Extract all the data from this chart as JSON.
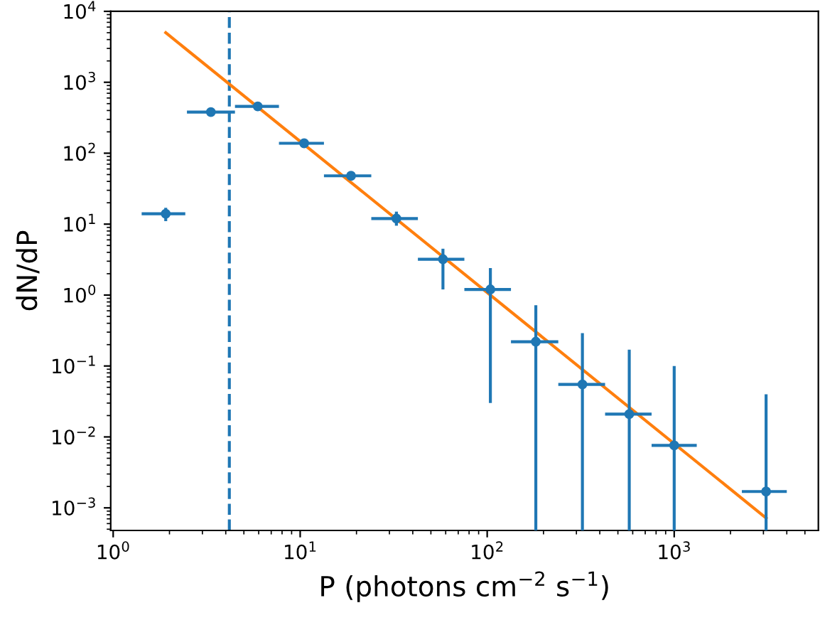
{
  "chart_data": {
    "type": "scatter",
    "xlabel": "P (photons cm$^{−2}$ s$^{−1}$)",
    "ylabel": "dN/dP",
    "log": "xy",
    "marker": "circle",
    "grid": false,
    "legend": false,
    "xlim": [
      0.97,
      5900
    ],
    "ylim": [
      0.00048,
      10000
    ],
    "xticks": [
      {
        "value": 1,
        "label": "10$^{0}$"
      },
      {
        "value": 10,
        "label": "10$^{1}$"
      },
      {
        "value": 100,
        "label": "10$^{2}$"
      },
      {
        "value": 1000,
        "label": "10$^{3}$"
      }
    ],
    "yticks": [
      {
        "value": 0.001,
        "label": "10$^{−3}$"
      },
      {
        "value": 0.01,
        "label": "10$^{−2}$"
      },
      {
        "value": 0.1,
        "label": "10$^{−1}$"
      },
      {
        "value": 1,
        "label": "10$^{0}$"
      },
      {
        "value": 10,
        "label": "10$^{1}$"
      },
      {
        "value": 100,
        "label": "10$^{2}$"
      },
      {
        "value": 1000,
        "label": "10$^{3}$"
      },
      {
        "value": 10000,
        "label": "10$^{4}$"
      }
    ],
    "ref_lines": [
      {
        "axis": "x",
        "value": 4.18,
        "color": "#1f77b4",
        "line_style": "dashed"
      }
    ],
    "series": [
      {
        "color": "#1f77b4",
        "x": [
          1.91,
          3.33,
          5.93,
          10.5,
          18.7,
          32.7,
          58,
          104,
          182,
          323,
          575,
          1000,
          3100
        ],
        "values": [
          14,
          380,
          457,
          138,
          48,
          12,
          3.2,
          1.2,
          0.22,
          0.055,
          0.021,
          0.0076,
          0.0017
        ],
        "errors": [
          [
            11,
            17
          ],
          [
            360,
            400
          ],
          [
            430,
            485
          ],
          [
            130,
            146
          ],
          [
            45,
            51
          ],
          [
            9.5,
            15
          ],
          [
            1.2,
            4.5
          ],
          [
            0.03,
            2.4
          ],
          [
            0.00048,
            0.72
          ],
          [
            0.00048,
            0.29
          ],
          [
            0.00048,
            0.17
          ],
          [
            0.00048,
            0.1
          ],
          [
            0.00048,
            0.04
          ]
        ],
        "xerrors": [
          [
            1.42,
            2.43
          ],
          [
            2.48,
            4.48
          ],
          [
            4.48,
            7.7
          ],
          [
            7.7,
            13.4
          ],
          [
            13.4,
            24
          ],
          [
            24,
            42.6
          ],
          [
            42.6,
            75.5
          ],
          [
            75.5,
            134
          ],
          [
            134,
            240
          ],
          [
            240,
            427
          ],
          [
            427,
            757
          ],
          [
            757,
            1320
          ],
          [
            2300,
            4000
          ]
        ]
      },
      {
        "type": "line",
        "color": "#ff7f0e",
        "marker": "none",
        "x": [
          1.91,
          3100
        ],
        "values": [
          5000,
          0.00072
        ]
      }
    ]
  }
}
